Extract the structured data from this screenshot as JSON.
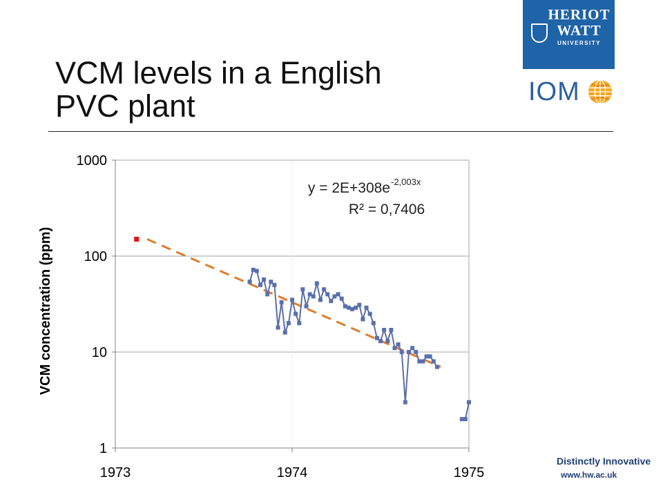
{
  "slide": {
    "title_line1": "VCM levels in a English",
    "title_line2": "PVC plant"
  },
  "logos": {
    "hw_line1": "HERIOT",
    "hw_line2": "WATT",
    "hw_line3": "UNIVERSITY",
    "iom_text": "IOM"
  },
  "footer": {
    "tagline": "Distinctly Innovative",
    "url": "www.hw.ac.uk"
  },
  "colors": {
    "brand_blue": "#1f63a8",
    "series_line": "#5b6ea8",
    "series_marker": "#5a6fae",
    "trendline": "#e07b2a",
    "outlier_marker": "#e01414",
    "gridline": "#a6a6a6"
  },
  "chart_data": {
    "type": "scatter",
    "title": "",
    "xlabel": "",
    "ylabel": "VCM concentration (ppm)",
    "yscale": "log",
    "xlim": [
      1973,
      1975
    ],
    "ylim": [
      1,
      1000
    ],
    "x_ticks": [
      "1973",
      "1974",
      "1975"
    ],
    "y_ticks": [
      "1",
      "10",
      "100",
      "1000"
    ],
    "grid": "horizontal",
    "legend": "none",
    "annotation": {
      "equation_prefix": "y = 2E+308e",
      "equation_exponent": "-2,003x",
      "r_squared": "R² = 0,7406"
    },
    "outlier_point": {
      "x": 1973.12,
      "y": 150
    },
    "series": [
      {
        "values": [
          [
            1973.76,
            54
          ],
          [
            1973.78,
            72
          ],
          [
            1973.8,
            70
          ],
          [
            1973.82,
            50
          ],
          [
            1973.84,
            57
          ],
          [
            1973.86,
            40
          ],
          [
            1973.88,
            54
          ],
          [
            1973.9,
            50
          ],
          [
            1973.92,
            18
          ],
          [
            1973.94,
            33
          ],
          [
            1973.96,
            16
          ],
          [
            1973.98,
            20
          ],
          [
            1974.0,
            35
          ],
          [
            1974.02,
            25
          ],
          [
            1974.04,
            20
          ],
          [
            1974.06,
            45
          ],
          [
            1974.08,
            30
          ],
          [
            1974.1,
            40
          ],
          [
            1974.12,
            38
          ],
          [
            1974.14,
            52
          ],
          [
            1974.16,
            35
          ],
          [
            1974.18,
            45
          ],
          [
            1974.2,
            40
          ],
          [
            1974.22,
            34
          ],
          [
            1974.24,
            38
          ],
          [
            1974.26,
            40
          ],
          [
            1974.28,
            36
          ],
          [
            1974.3,
            30
          ],
          [
            1974.32,
            29
          ],
          [
            1974.34,
            28
          ],
          [
            1974.36,
            29
          ],
          [
            1974.38,
            31
          ],
          [
            1974.4,
            22
          ],
          [
            1974.42,
            29
          ],
          [
            1974.44,
            25
          ],
          [
            1974.46,
            20
          ],
          [
            1974.48,
            14
          ],
          [
            1974.5,
            13
          ],
          [
            1974.52,
            17
          ],
          [
            1974.54,
            13
          ],
          [
            1974.56,
            17
          ],
          [
            1974.58,
            11
          ],
          [
            1974.6,
            12
          ],
          [
            1974.62,
            10
          ],
          [
            1974.64,
            3
          ],
          [
            1974.66,
            10
          ],
          [
            1974.68,
            11
          ],
          [
            1974.7,
            10
          ],
          [
            1974.72,
            8
          ],
          [
            1974.74,
            8
          ],
          [
            1974.76,
            9
          ],
          [
            1974.78,
            9
          ],
          [
            1974.8,
            8
          ],
          [
            1974.82,
            7
          ],
          [
            1974.96,
            2
          ],
          [
            1974.98,
            2
          ],
          [
            1975.0,
            3
          ]
        ]
      }
    ],
    "trendline": {
      "x_start": 1973.18,
      "y_start": 150,
      "x_end": 1974.84,
      "y_end": 7
    }
  }
}
